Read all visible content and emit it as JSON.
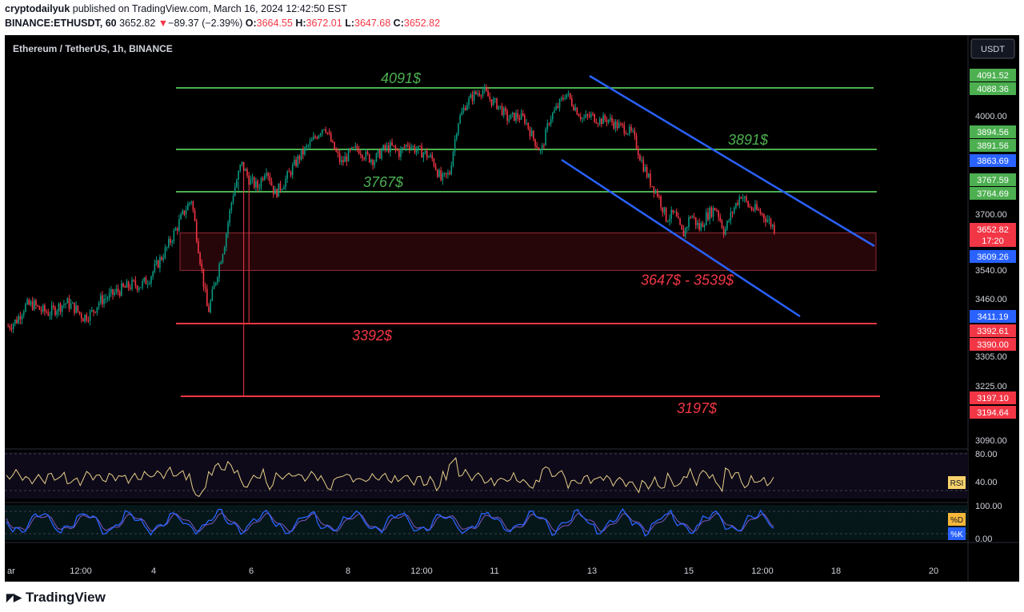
{
  "header": {
    "publisher": "cryptodailyuk",
    "published_text": " published on TradingView.com, March 16, 2024 12:42:50 EST",
    "symbol": "BINANCE:ETHUSDT, 60",
    "last": "3652.82",
    "change_arrow": "▼",
    "change": "−89.37 (−2.39%)",
    "o_label": "O:",
    "o": "3664.55",
    "h_label": "H:",
    "h": "3672.01",
    "l_label": "L:",
    "l": "3647.68",
    "c_label": "C:",
    "c": "3652.82"
  },
  "legend_title": "Ethereum / TetherUS, 1h, BINANCE",
  "currency_button": "USDT",
  "brand": "TradingView",
  "brand_icon": "tradingview-logo-icon",
  "colors": {
    "green_line": "#4caf50",
    "red_line": "#f23645",
    "channel": "#2962ff",
    "candle_up": "#089981",
    "candle_down": "#f23645",
    "rsi": "#e8d08a",
    "stoch_k": "#2962ff",
    "stoch_d": "#7e57c2"
  },
  "chart_data": {
    "type": "candlestick",
    "price_ticks": [
      "4000.00",
      "3700.00",
      "3540.00",
      "3460.00",
      "3305.00",
      "3225.00",
      "3090.00"
    ],
    "time_ticks": [
      "ar",
      "12:00",
      "4",
      "6",
      "8",
      "12:00",
      "11",
      "13",
      "15",
      "12:00",
      "18",
      "20"
    ],
    "price_badges": [
      {
        "value": "4091.52",
        "color": "#4caf50"
      },
      {
        "value": "4088.36",
        "color": "#4caf50"
      },
      {
        "value": "3894.56",
        "color": "#4caf50"
      },
      {
        "value": "3891.56",
        "color": "#4caf50"
      },
      {
        "value": "3863.69",
        "color": "#2962ff"
      },
      {
        "value": "3767.59",
        "color": "#4caf50"
      },
      {
        "value": "3764.69",
        "color": "#4caf50"
      },
      {
        "value": "3652.82",
        "color": "#f23645",
        "countdown": "17:20"
      },
      {
        "value": "3609.26",
        "color": "#2962ff"
      },
      {
        "value": "3411.19",
        "color": "#2962ff"
      },
      {
        "value": "3392.61",
        "color": "#f23645"
      },
      {
        "value": "3390.00",
        "color": "#f23645"
      },
      {
        "value": "3197.10",
        "color": "#f23645"
      },
      {
        "value": "3194.64",
        "color": "#f23645"
      }
    ],
    "horizontal_levels": [
      {
        "price": 4091,
        "label": "4091$",
        "color": "#4caf50"
      },
      {
        "price": 3891,
        "label": "3891$",
        "color": "#4caf50"
      },
      {
        "price": 3767,
        "label": "3767$",
        "color": "#4caf50"
      },
      {
        "price": 3392,
        "label": "3392$",
        "color": "#f23645"
      },
      {
        "price": 3197,
        "label": "3197$",
        "color": "#f23645"
      }
    ],
    "zone": {
      "high": 3647,
      "low": 3539,
      "label": "3647$ - 3539$"
    },
    "close_path": [
      3385,
      3400,
      3440,
      3445,
      3428,
      3422,
      3438,
      3450,
      3435,
      3410,
      3420,
      3455,
      3465,
      3480,
      3490,
      3500,
      3498,
      3520,
      3560,
      3600,
      3650,
      3700,
      3745,
      3580,
      3420,
      3520,
      3620,
      3760,
      3850,
      3800,
      3780,
      3840,
      3760,
      3790,
      3830,
      3870,
      3900,
      3935,
      3970,
      3900,
      3850,
      3880,
      3895,
      3870,
      3860,
      3890,
      3900,
      3880,
      3910,
      3890,
      3880,
      3860,
      3800,
      3820,
      3980,
      4040,
      4070,
      4085,
      4050,
      4030,
      3990,
      4000,
      3990,
      3930,
      3880,
      3990,
      4030,
      4075,
      4030,
      3990,
      4000,
      3985,
      3990,
      3970,
      3960,
      3940,
      3860,
      3800,
      3760,
      3690,
      3700,
      3640,
      3700,
      3660,
      3700,
      3720,
      3650,
      3710,
      3760,
      3720,
      3710,
      3690,
      3660
    ],
    "rsi": {
      "ticks": [
        "80.00",
        "40.00"
      ],
      "label": "RSI"
    },
    "stoch": {
      "ticks": [
        "100.00",
        "0.00"
      ],
      "labels": [
        "%D",
        "%K"
      ]
    }
  }
}
